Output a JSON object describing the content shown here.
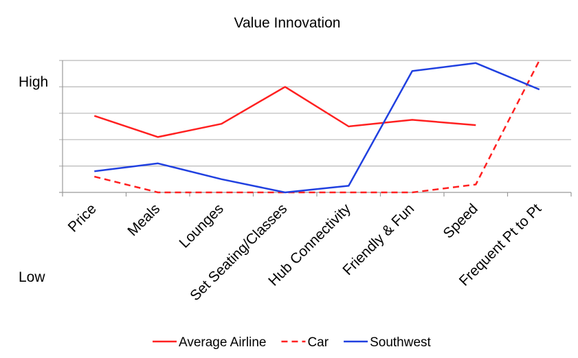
{
  "chart_data": {
    "type": "line",
    "title": "Value Innovation",
    "y_high_label": "High",
    "y_low_label": "Low",
    "ylim": [
      0,
      5
    ],
    "grid": true,
    "legend_position": "bottom",
    "categories": [
      "Price",
      "Meals",
      "Lounges",
      "Set Seating/Classes",
      "Hub Connectivity",
      "Friendly & Fun",
      "Speed",
      "Frequent Pt to Pt"
    ],
    "series": [
      {
        "name": "Average Airline",
        "color": "#ff2020",
        "dash": "solid",
        "values": [
          2.9,
          2.1,
          2.6,
          4.0,
          2.5,
          2.75,
          2.55,
          null
        ]
      },
      {
        "name": "Car",
        "color": "#ff2020",
        "dash": "dashed",
        "values": [
          0.6,
          0.0,
          0.0,
          0.0,
          0.0,
          0.0,
          0.3,
          5.0
        ]
      },
      {
        "name": "Southwest",
        "color": "#2040e0",
        "dash": "solid",
        "values": [
          0.8,
          1.1,
          0.5,
          0.0,
          0.25,
          4.6,
          4.9,
          3.9
        ]
      }
    ]
  }
}
